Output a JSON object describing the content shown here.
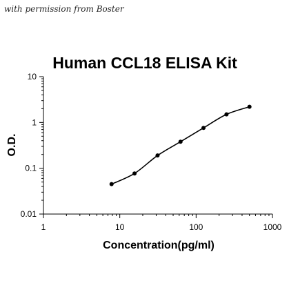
{
  "watermark": "with permission from Boster",
  "chart_data": {
    "type": "scatter",
    "title": "Human CCL18 ELISA Kit",
    "xlabel": "Concentration(pg/ml)",
    "ylabel": "O.D.",
    "x_scale": "log",
    "y_scale": "log",
    "xlim": [
      1,
      1000
    ],
    "ylim": [
      0.01,
      10
    ],
    "x_ticks": [
      "1",
      "10",
      "100",
      "1000"
    ],
    "y_ticks": [
      "0.01",
      "0.1",
      "1",
      "10"
    ],
    "grid": false,
    "legend": "none",
    "series": [
      {
        "x": [
          7.8,
          15.6,
          31.25,
          62.5,
          125,
          250,
          500
        ],
        "y": [
          0.045,
          0.077,
          0.19,
          0.38,
          0.76,
          1.5,
          2.2
        ],
        "fit_curve": true
      }
    ]
  }
}
